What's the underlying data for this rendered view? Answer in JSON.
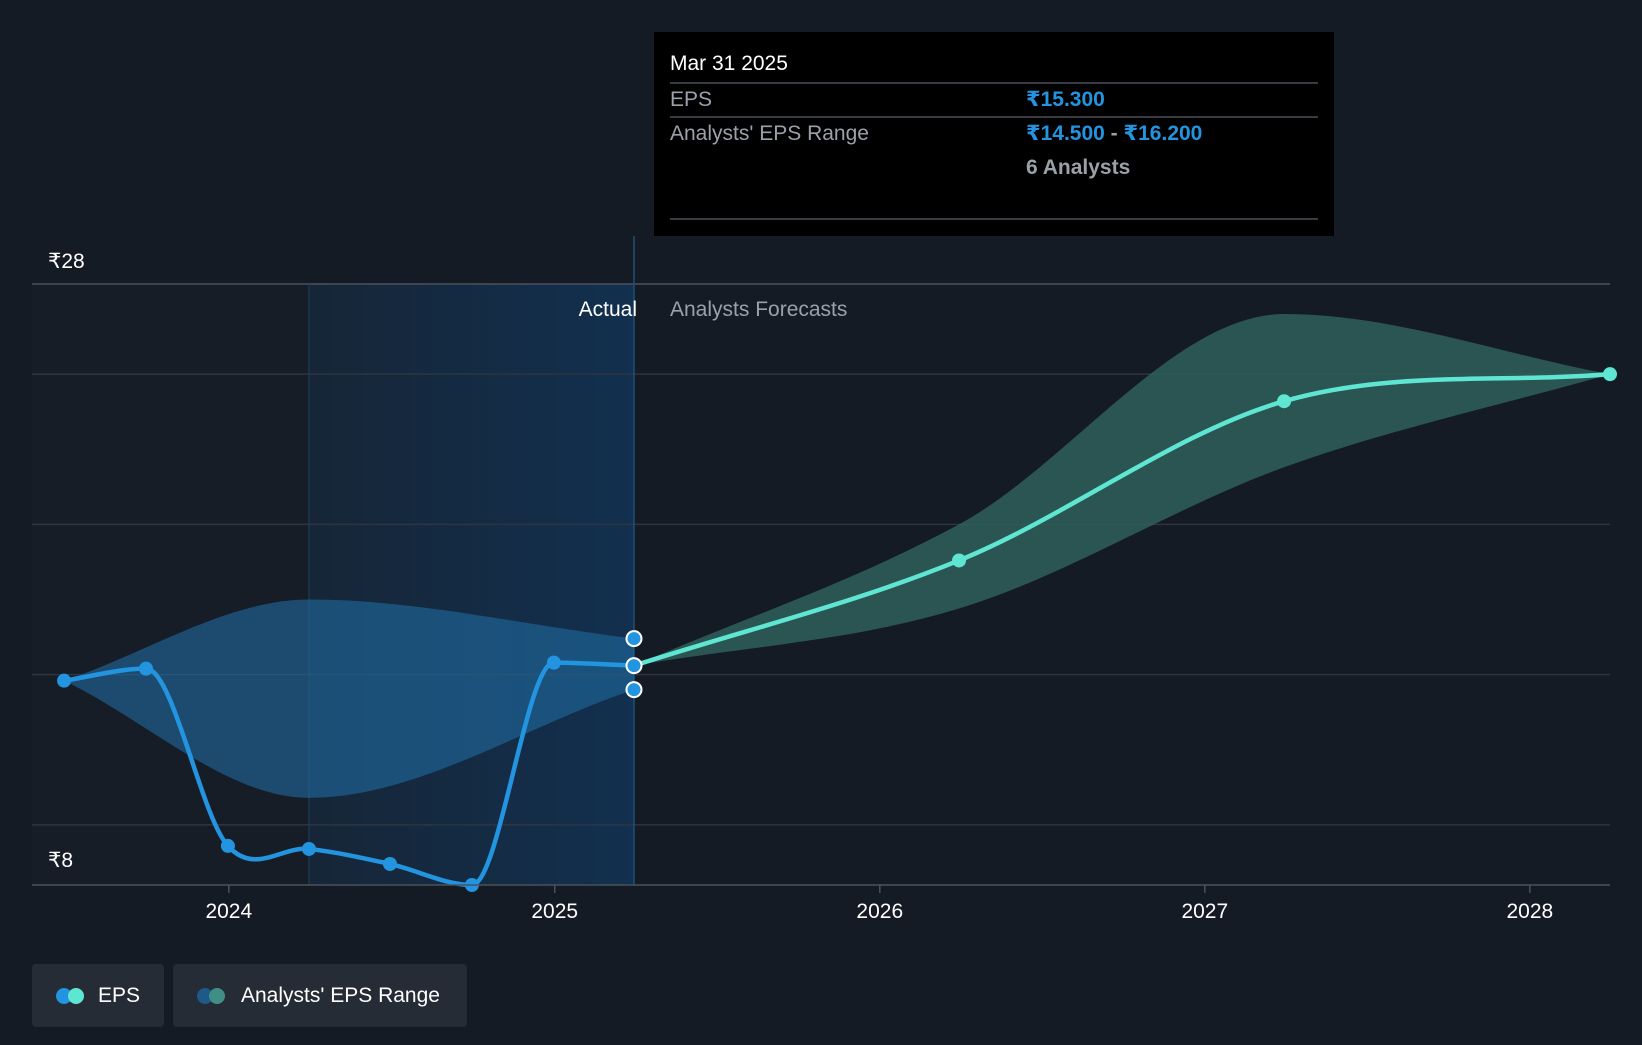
{
  "tooltip": {
    "date": "Mar 31 2025",
    "eps_label": "EPS",
    "eps_value": "₹15.300",
    "range_label": "Analysts' EPS Range",
    "range_low": "₹14.500",
    "range_sep": " - ",
    "range_high": "₹16.200",
    "analysts": "6 Analysts"
  },
  "regions": {
    "actual": "Actual",
    "forecast": "Analysts Forecasts"
  },
  "legend": [
    {
      "label": "EPS",
      "colors": [
        "#2394df",
        "#5ee6d3"
      ]
    },
    {
      "label": "Analysts' EPS Range",
      "colors": [
        "#1d5a87",
        "#3f8f86"
      ]
    }
  ],
  "colors": {
    "actual": "#2394df",
    "forecast": "#5ee6d3",
    "actual_band": "#1f6aa0",
    "forecast_band": "#2f5f5c",
    "background": "#151b24"
  },
  "chart_data": {
    "type": "line",
    "title": "",
    "xlabel": "",
    "ylabel": "",
    "ylim": [
      8,
      28
    ],
    "y_ticks": [
      {
        "value": 28,
        "label": "₹28"
      },
      {
        "value": 8,
        "label": "₹8"
      }
    ],
    "gridlines": [
      28,
      25,
      20,
      15,
      10
    ],
    "x_ticks": [
      {
        "date": "2024-01-01",
        "label": "2024"
      },
      {
        "date": "2025-01-01",
        "label": "2025"
      },
      {
        "date": "2026-01-01",
        "label": "2026"
      },
      {
        "date": "2027-01-01",
        "label": "2027"
      },
      {
        "date": "2028-01-01",
        "label": "2028"
      }
    ],
    "xlim": [
      "2023-05-25",
      "2028-03-31"
    ],
    "divider_date": "2025-03-31",
    "shaded_start_date": "2024-03-31",
    "series": [
      {
        "name": "EPS",
        "points": [
          {
            "date": "2023-06-30",
            "value": 14.8
          },
          {
            "date": "2023-09-30",
            "value": 15.2
          },
          {
            "date": "2023-12-31",
            "value": 9.3
          },
          {
            "date": "2024-03-31",
            "value": 9.2
          },
          {
            "date": "2024-06-30",
            "value": 8.7
          },
          {
            "date": "2024-09-30",
            "value": 8.0
          },
          {
            "date": "2024-12-31",
            "value": 15.4
          },
          {
            "date": "2025-03-31",
            "value": 15.3
          }
        ]
      },
      {
        "name": "EPS",
        "points": [
          {
            "date": "2025-03-31",
            "value": 15.3
          },
          {
            "date": "2026-03-31",
            "value": 18.8
          },
          {
            "date": "2027-03-31",
            "value": 24.1
          },
          {
            "date": "2028-03-31",
            "value": 25.0
          }
        ]
      }
    ],
    "range_band": {
      "name": "Analysts' EPS Range",
      "actual": [
        {
          "date": "2023-06-30",
          "low": 14.8,
          "high": 14.8
        },
        {
          "date": "2024-03-31",
          "low": 10.9,
          "high": 17.5
        },
        {
          "date": "2025-03-31",
          "low": 14.5,
          "high": 16.2
        }
      ],
      "forecast": [
        {
          "date": "2025-03-31",
          "low": 15.3,
          "high": 15.3
        },
        {
          "date": "2026-03-31",
          "low": 17.2,
          "high": 20.0
        },
        {
          "date": "2027-03-31",
          "low": 21.9,
          "high": 27.0
        },
        {
          "date": "2028-03-31",
          "low": 25.0,
          "high": 25.0
        }
      ]
    }
  }
}
